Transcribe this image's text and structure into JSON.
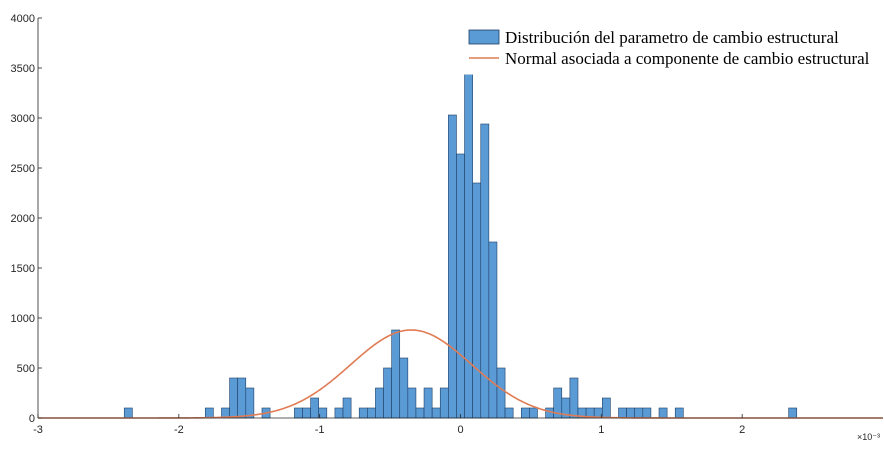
{
  "chart_data": {
    "type": "bar",
    "xlim": [
      -3,
      3
    ],
    "ylim": [
      0,
      4000
    ],
    "x_ticks": [
      "-3",
      "-2",
      "-1",
      "0",
      "1",
      "2"
    ],
    "y_ticks": [
      "0",
      "500",
      "1000",
      "1500",
      "2000",
      "2500",
      "3000",
      "3500",
      "4000"
    ],
    "x_exponent_label": "×10⁻³",
    "legend_position": "top-right",
    "series": [
      {
        "name": "Distribución del parametro de cambio estructural",
        "type": "histogram",
        "color": "#5B9BD5",
        "bin_width": 0.0575,
        "bins": [
          {
            "x": -2.3588,
            "y": 100
          },
          {
            "x": -1.7835,
            "y": 100
          },
          {
            "x": -1.6684,
            "y": 100
          },
          {
            "x": -1.6109,
            "y": 400
          },
          {
            "x": -1.5534,
            "y": 400
          },
          {
            "x": -1.4958,
            "y": 300
          },
          {
            "x": -1.3808,
            "y": 100
          },
          {
            "x": -1.1506,
            "y": 100
          },
          {
            "x": -1.0931,
            "y": 100
          },
          {
            "x": -1.0356,
            "y": 200
          },
          {
            "x": -0.978,
            "y": 100
          },
          {
            "x": -0.863,
            "y": 100
          },
          {
            "x": -0.8055,
            "y": 200
          },
          {
            "x": -0.6904,
            "y": 100
          },
          {
            "x": -0.6329,
            "y": 100
          },
          {
            "x": -0.5753,
            "y": 300
          },
          {
            "x": -0.5178,
            "y": 500
          },
          {
            "x": -0.4603,
            "y": 880
          },
          {
            "x": -0.4027,
            "y": 600
          },
          {
            "x": -0.3452,
            "y": 300
          },
          {
            "x": -0.2877,
            "y": 100
          },
          {
            "x": -0.2301,
            "y": 300
          },
          {
            "x": -0.1726,
            "y": 100
          },
          {
            "x": -0.1151,
            "y": 300
          },
          {
            "x": -0.0575,
            "y": 3030
          },
          {
            "x": 0.0,
            "y": 2640
          },
          {
            "x": 0.0575,
            "y": 3620
          },
          {
            "x": 0.1151,
            "y": 2350
          },
          {
            "x": 0.1726,
            "y": 2940
          },
          {
            "x": 0.2301,
            "y": 1760
          },
          {
            "x": 0.2877,
            "y": 500
          },
          {
            "x": 0.3452,
            "y": 100
          },
          {
            "x": 0.4603,
            "y": 100
          },
          {
            "x": 0.5178,
            "y": 100
          },
          {
            "x": 0.6329,
            "y": 100
          },
          {
            "x": 0.6904,
            "y": 300
          },
          {
            "x": 0.7479,
            "y": 200
          },
          {
            "x": 0.8055,
            "y": 400
          },
          {
            "x": 0.863,
            "y": 100
          },
          {
            "x": 0.9205,
            "y": 100
          },
          {
            "x": 0.978,
            "y": 100
          },
          {
            "x": 1.0356,
            "y": 200
          },
          {
            "x": 1.1506,
            "y": 100
          },
          {
            "x": 1.2082,
            "y": 100
          },
          {
            "x": 1.2657,
            "y": 100
          },
          {
            "x": 1.3233,
            "y": 100
          },
          {
            "x": 1.4383,
            "y": 100
          },
          {
            "x": 1.5534,
            "y": 100
          },
          {
            "x": 2.3588,
            "y": 100
          }
        ]
      },
      {
        "name": "Normal asociada a componente de cambio estructural",
        "type": "line",
        "color": "#E07B54",
        "mean": -0.35,
        "sd": 0.43,
        "peak": 880
      }
    ]
  }
}
